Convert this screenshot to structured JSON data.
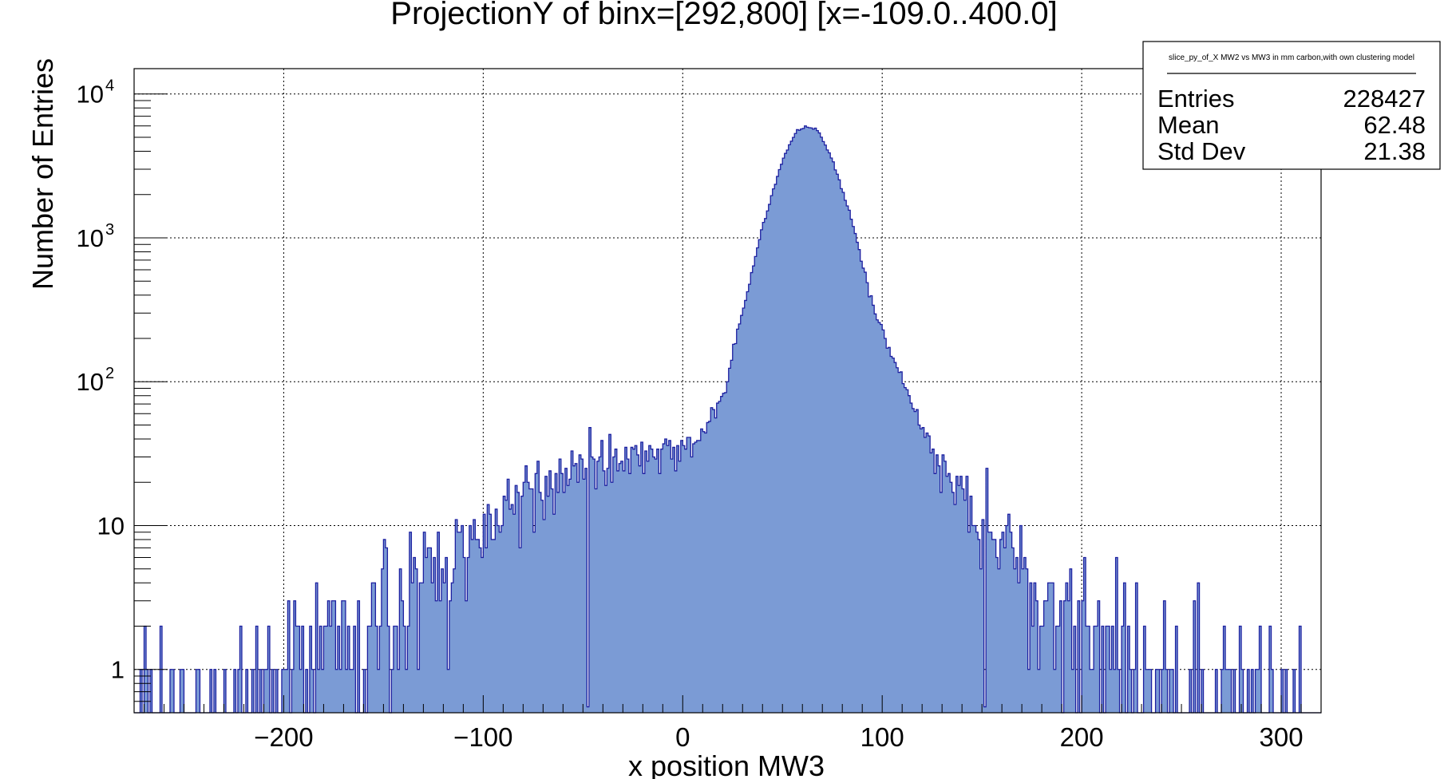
{
  "chart_data": {
    "type": "bar",
    "histogram": true,
    "title": "ProjectionY of binx=[292,800] [x=-109.0..400.0]",
    "xlabel": "x position MW3",
    "ylabel": "Number of Entries",
    "xlim": [
      -275,
      320
    ],
    "ylim": [
      0.5,
      15000
    ],
    "y_log_scale": true,
    "grid": true,
    "x_ticks": [
      -200,
      -100,
      0,
      100,
      200,
      300
    ],
    "x_tick_labels": [
      "−200",
      "−100",
      "0",
      "100",
      "200",
      "300"
    ],
    "y_ticks": [
      {
        "value": 1,
        "base": "1",
        "exp": ""
      },
      {
        "value": 10,
        "base": "10",
        "exp": ""
      },
      {
        "value": 100,
        "base": "10",
        "exp": "2"
      },
      {
        "value": 1000,
        "base": "10",
        "exp": "3"
      },
      {
        "value": 10000,
        "base": "10",
        "exp": "4"
      }
    ],
    "fill_color": "#7b9bd5",
    "line_color": "#1c1fa0",
    "stats_box": {
      "name": "slice_py_of_X MW2 vs MW3 in mm carbon,with own clustering model",
      "rows": [
        {
          "label": "Entries",
          "value": "228427"
        },
        {
          "label": "Mean",
          "value": "62.48"
        },
        {
          "label": "Std Dev",
          "value": "21.38"
        }
      ]
    },
    "series": [
      {
        "bin_width": 1,
        "profile_knots": [
          [
            -250,
            0.3
          ],
          [
            -230,
            0.6
          ],
          [
            -200,
            0.9
          ],
          [
            -180,
            1.6
          ],
          [
            -160,
            2.6
          ],
          [
            -140,
            3.5
          ],
          [
            -120,
            6
          ],
          [
            -100,
            10
          ],
          [
            -80,
            17
          ],
          [
            -60,
            22
          ],
          [
            -50,
            25
          ],
          [
            -40,
            28
          ],
          [
            -20,
            30
          ],
          [
            0,
            35
          ],
          [
            10,
            45
          ],
          [
            20,
            80
          ],
          [
            30,
            300
          ],
          [
            40,
            1200
          ],
          [
            50,
            3500
          ],
          [
            57,
            5500
          ],
          [
            62,
            6000
          ],
          [
            68,
            5600
          ],
          [
            75,
            3500
          ],
          [
            85,
            1300
          ],
          [
            95,
            350
          ],
          [
            105,
            150
          ],
          [
            115,
            70
          ],
          [
            125,
            35
          ],
          [
            135,
            20
          ],
          [
            145,
            12
          ],
          [
            160,
            7
          ],
          [
            180,
            4
          ],
          [
            200,
            2.5
          ],
          [
            220,
            1.3
          ],
          [
            240,
            0.8
          ],
          [
            270,
            0.6
          ],
          [
            300,
            0.5
          ],
          [
            320,
            0.4
          ]
        ],
        "special_bins": [
          {
            "x": -48,
            "value": 0.55
          },
          {
            "x": -47,
            "value": 48
          },
          {
            "x": 151,
            "value": 0.55
          },
          {
            "x": 152,
            "value": 25
          }
        ],
        "noise_seed": 7
      }
    ]
  }
}
